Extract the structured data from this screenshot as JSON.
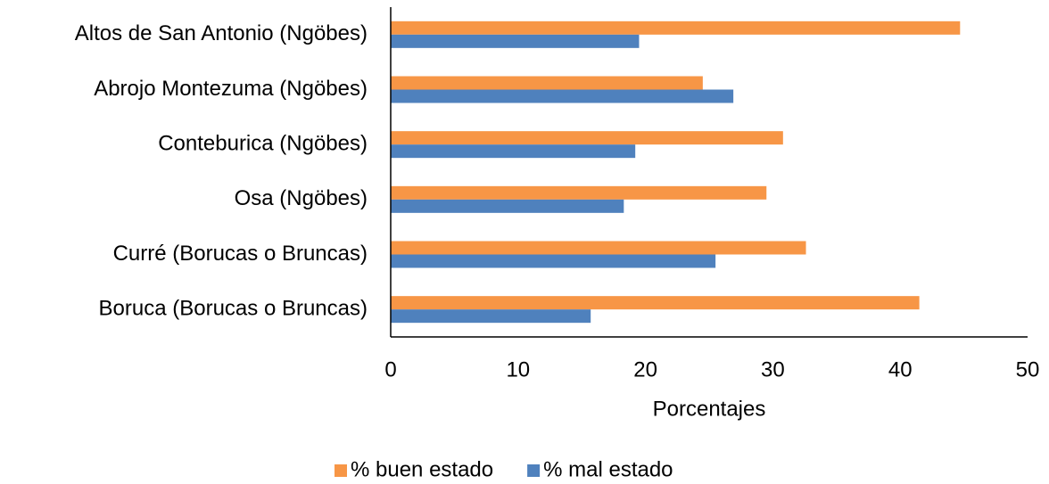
{
  "chart_data": {
    "type": "barh",
    "categories": [
      "Altos de San Antonio (Ngöbes)",
      "Abrojo Montezuma (Ngöbes)",
      "Conteburica (Ngöbes)",
      "Osa (Ngöbes)",
      "Curré (Borucas o Bruncas)",
      "Boruca (Borucas o Bruncas)"
    ],
    "series": [
      {
        "name": "% buen estado",
        "color": "#f79646",
        "values": [
          44.7,
          24.5,
          30.8,
          29.5,
          32.6,
          41.5
        ]
      },
      {
        "name": "% mal estado",
        "color": "#4f81bd",
        "values": [
          19.5,
          26.9,
          19.2,
          18.3,
          25.5,
          15.7
        ]
      }
    ],
    "xlabel": "Porcentajes",
    "xlim": [
      0,
      50
    ],
    "xticks": [
      0,
      10,
      20,
      30,
      40,
      50
    ],
    "legend": "bottom",
    "grid": false
  }
}
